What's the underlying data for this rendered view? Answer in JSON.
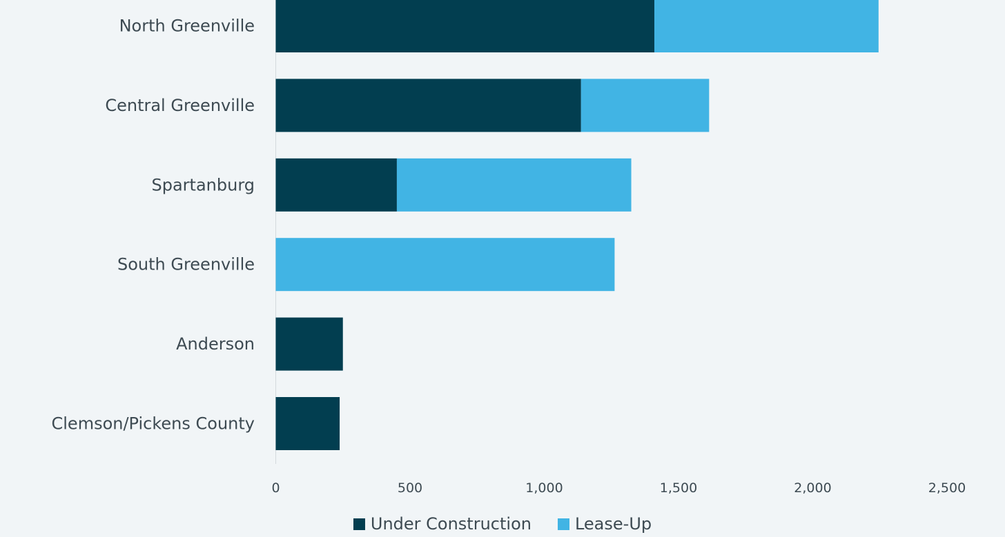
{
  "chart_data": {
    "type": "bar",
    "orientation": "horizontal",
    "stacked": true,
    "title": "",
    "xlabel": "",
    "ylabel": "",
    "categories": [
      "North Greenville",
      "Central Greenville",
      "Spartanburg",
      "South Greenville",
      "Anderson",
      "Clemson/Pickens County"
    ],
    "series": [
      {
        "name": "Under Construction",
        "color": "#023e50",
        "values": [
          1410,
          1137,
          451,
          0,
          250,
          238
        ]
      },
      {
        "name": "Lease-Up",
        "color": "#41b4e4",
        "values": [
          835,
          477,
          873,
          1262,
          0,
          0
        ]
      }
    ],
    "xlim": [
      0,
      2500
    ],
    "xticks": [
      0,
      500,
      1000,
      1500,
      2000,
      2500
    ],
    "xtick_labels": [
      "0",
      "500",
      "1,000",
      "1,500",
      "2,000",
      "2,500"
    ],
    "grid": false,
    "legend_position": "bottom-center"
  }
}
